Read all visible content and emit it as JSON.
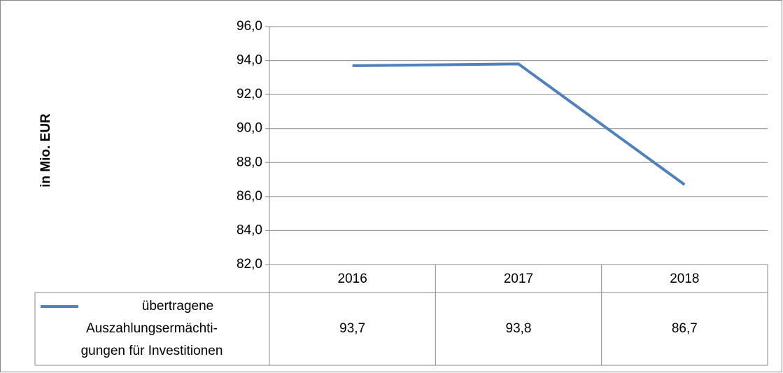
{
  "chart_data": {
    "type": "line",
    "y_label": "in Mio. EUR",
    "categories": [
      "2016",
      "2017",
      "2018"
    ],
    "series": [
      {
        "name": "übertragene\nAuszahlungsermächti-\ngungen für Investitionen",
        "color": "#4f81bd",
        "values": [
          93.7,
          93.8,
          86.7
        ],
        "value_labels": [
          "93,7",
          "93,8",
          "86,7"
        ]
      }
    ],
    "ylim": [
      82,
      96
    ],
    "yticks": [
      {
        "value": 82,
        "label": "82,0"
      },
      {
        "value": 84,
        "label": "84,0"
      },
      {
        "value": 86,
        "label": "86,0"
      },
      {
        "value": 88,
        "label": "88,0"
      },
      {
        "value": 90,
        "label": "90,0"
      },
      {
        "value": 92,
        "label": "92,0"
      },
      {
        "value": 94,
        "label": "94,0"
      },
      {
        "value": 96,
        "label": "96,0"
      }
    ],
    "grid": true
  }
}
